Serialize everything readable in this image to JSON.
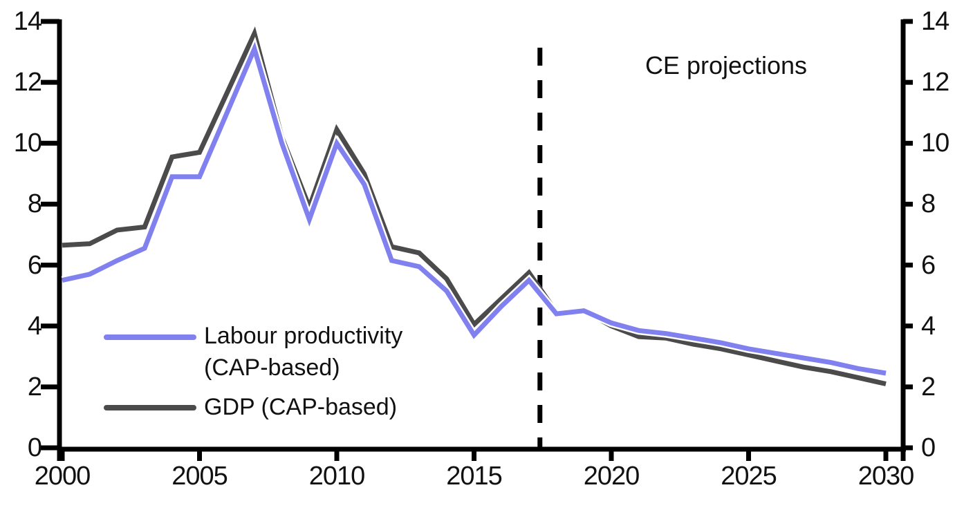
{
  "annotation": {
    "projection_label": "CE projections"
  },
  "legend": {
    "items": [
      {
        "line1": "Labour productivity",
        "line2": "(CAP-based)"
      },
      {
        "line1": "GDP (CAP-based)",
        "line2": ""
      }
    ]
  },
  "chart_data": {
    "type": "line",
    "title": "",
    "xlabel": "",
    "ylabel": "",
    "xlim": [
      2000,
      2030
    ],
    "ylim": [
      0,
      14
    ],
    "x_ticks": [
      2000,
      2005,
      2010,
      2015,
      2020,
      2025,
      2030
    ],
    "y_ticks": [
      0,
      2,
      4,
      6,
      8,
      10,
      12,
      14
    ],
    "dual_y_axis": true,
    "grid": false,
    "legend_position": "inside-bottom-left",
    "projection_divider_year": 2017.4,
    "annotations": [
      "CE projections"
    ],
    "axis_color": "#000000",
    "x": [
      2000,
      2001,
      2002,
      2003,
      2004,
      2005,
      2006,
      2007,
      2008,
      2009,
      2010,
      2011,
      2012,
      2013,
      2014,
      2015,
      2016,
      2017,
      2018,
      2019,
      2020,
      2021,
      2022,
      2023,
      2024,
      2025,
      2026,
      2027,
      2028,
      2029,
      2030
    ],
    "series": [
      {
        "name": "Labour productivity (CAP-based)",
        "color": "#8080ee",
        "values": [
          5.5,
          5.7,
          6.15,
          6.55,
          8.9,
          8.9,
          11.0,
          13.1,
          10.0,
          7.5,
          10.0,
          8.65,
          6.15,
          5.95,
          5.15,
          3.7,
          4.65,
          5.5,
          4.4,
          4.5,
          4.1,
          3.85,
          3.75,
          3.6,
          3.45,
          3.25,
          3.1,
          2.95,
          2.8,
          2.6,
          2.45
        ]
      },
      {
        "name": "GDP (CAP-based)",
        "color": "#4b4b4b",
        "values": [
          6.65,
          6.7,
          7.15,
          7.25,
          9.55,
          9.7,
          11.65,
          13.6,
          10.2,
          7.9,
          10.45,
          9.0,
          6.6,
          6.4,
          5.55,
          4.05,
          4.9,
          5.75,
          4.45,
          4.5,
          4.0,
          3.65,
          3.6,
          3.4,
          3.25,
          3.05,
          2.85,
          2.65,
          2.5,
          2.3,
          2.1
        ]
      }
    ]
  }
}
